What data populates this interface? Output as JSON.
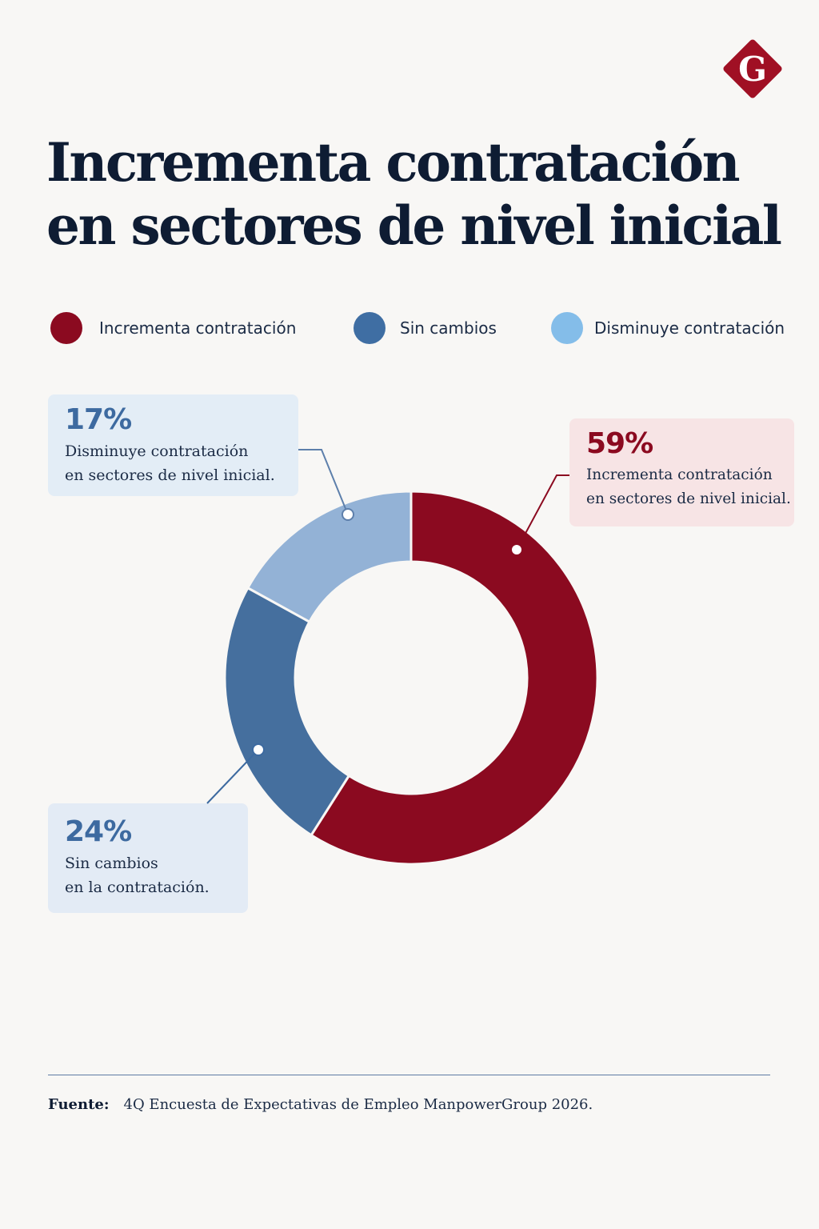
{
  "brand": {
    "logo_letter": "G",
    "logo_color": "#a01024"
  },
  "title_lines": [
    "Incrementa contratación",
    "en sectores de nivel inicial"
  ],
  "legend": [
    {
      "label": "Incrementa contratación",
      "color": "#8b0a20"
    },
    {
      "label": "Sin cambios",
      "color": "#3f6ea3"
    },
    {
      "label": "Disminuye contratación",
      "color": "#84bde9"
    }
  ],
  "callouts": [
    {
      "pct": "17%",
      "desc": "Disminuye contratación\nen sectores de nivel inicial.",
      "color": "#3d6aa0",
      "bg": "#e3edf6"
    },
    {
      "pct": "59%",
      "desc": "Incrementa contratación\nen sectores de nivel inicial.",
      "color": "#8b0a20",
      "bg": "#f7e4e5"
    },
    {
      "pct": "24%",
      "desc": "Sin cambios\nen la contratación.",
      "color": "#3d6aa0",
      "bg": "#e3ebf5"
    }
  ],
  "chart_data": {
    "type": "pie",
    "style": "donut",
    "categories": [
      "Incrementa contratación",
      "Sin cambios",
      "Disminuye contratación"
    ],
    "values": [
      59,
      24,
      17
    ],
    "unit": "%",
    "colors": [
      "#8b0a20",
      "#456f9e",
      "#93b2d6"
    ]
  },
  "source": {
    "label": "Fuente:",
    "text": "4Q Encuesta de Expectativas de Empleo ManpowerGroup 2026."
  }
}
